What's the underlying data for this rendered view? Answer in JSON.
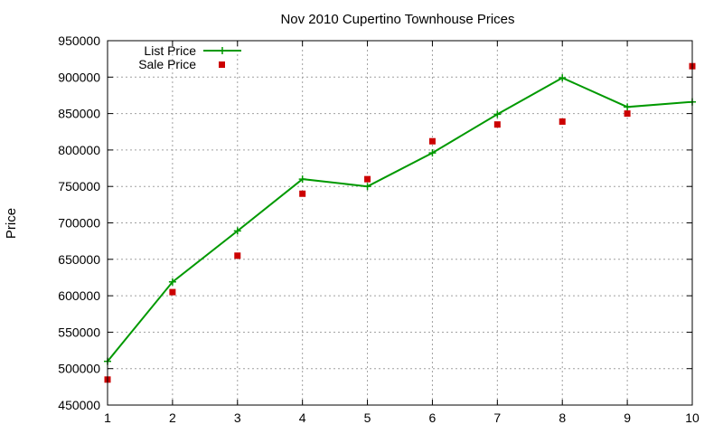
{
  "chart_data": {
    "type": "line",
    "title": "Nov 2010 Cupertino Townhouse Prices",
    "xlabel": "",
    "ylabel": "Price",
    "x": [
      1,
      2,
      3,
      4,
      5,
      6,
      7,
      8,
      9,
      10
    ],
    "xlim": [
      1,
      10
    ],
    "ylim": [
      450000,
      950000
    ],
    "xticks": [
      "1",
      "2",
      "3",
      "4",
      "5",
      "6",
      "7",
      "8",
      "9",
      "10"
    ],
    "yticks": [
      "450000",
      "500000",
      "550000",
      "600000",
      "650000",
      "700000",
      "750000",
      "800000",
      "850000",
      "900000",
      "950000"
    ],
    "grid": true,
    "legend_position": "top-left",
    "series": [
      {
        "name": "List Price",
        "style": "line+cross",
        "color": "#009900",
        "values": [
          510000,
          619000,
          689000,
          760000,
          750000,
          796000,
          849000,
          899000,
          859000,
          866000
        ]
      },
      {
        "name": "Sale Price",
        "style": "square",
        "color": "#cc0000",
        "values": [
          485000,
          605000,
          655000,
          740000,
          760000,
          812000,
          835000,
          839000,
          850000,
          915000
        ]
      }
    ]
  }
}
